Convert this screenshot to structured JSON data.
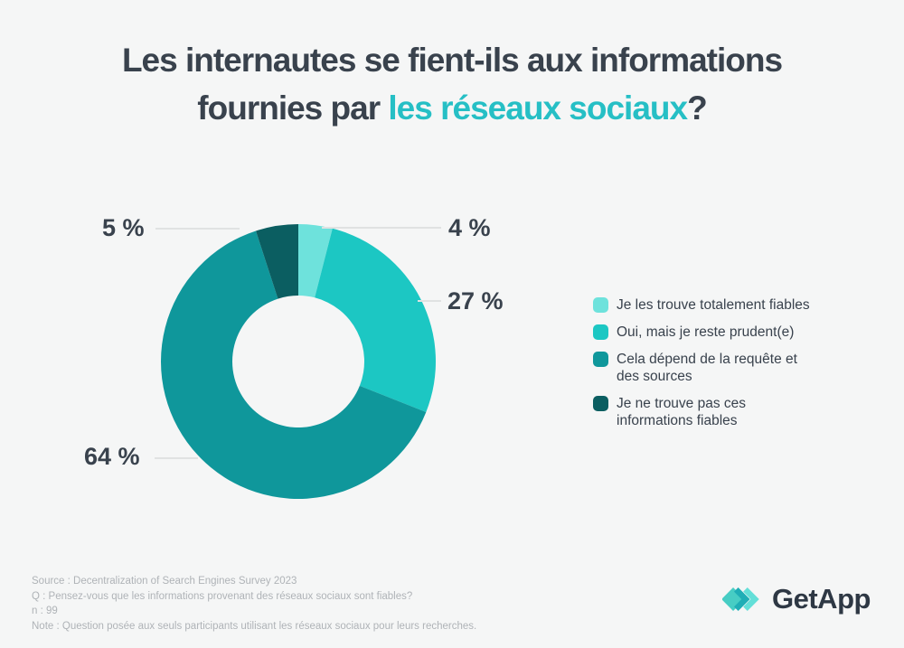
{
  "title": {
    "line1": "Les internautes se fient-ils aux informations",
    "line2_prefix": "fournies par ",
    "line2_highlight": "les réseaux sociaux",
    "line2_suffix": "?"
  },
  "chart_data": {
    "type": "pie",
    "subtype": "donut",
    "title": "Les internautes se fient-ils aux informations fournies par les réseaux sociaux?",
    "start_angle_deg": 0,
    "direction": "clockwise",
    "legend_position": "right",
    "slices": [
      {
        "label": "Je les trouve totalement fiables",
        "legend_text": "Je les trouve totalement fiables",
        "value_pct": 4,
        "display": "4 %",
        "color": "#6EE2DC"
      },
      {
        "label": "Oui, mais je reste prudent(e)",
        "legend_text": "Oui, mais je reste prudent(e)",
        "value_pct": 27,
        "display": "27 %",
        "color": "#1CC7C3"
      },
      {
        "label": "Cela dépend de la requête et des sources",
        "legend_text": "Cela dépend de la requête et\ndes sources",
        "value_pct": 64,
        "display": "64 %",
        "color": "#0F979B"
      },
      {
        "label": "Je ne trouve pas ces informations fiables",
        "legend_text": "Je ne trouve pas ces\ninformations fiables",
        "value_pct": 5,
        "display": "5 %",
        "color": "#0B5E61"
      }
    ]
  },
  "footer": {
    "lines": [
      "Source : Decentralization of Search Engines Survey 2023",
      "Q : Pensez-vous que les informations provenant des réseaux sociaux sont fiables?",
      "n : 99",
      "Note : Question posée aux seuls participants utilisant les réseaux sociaux pour leurs recherches."
    ]
  },
  "logo": {
    "text": "GetApp"
  },
  "colors": {
    "background": "#F5F6F6",
    "title_text": "#39424D",
    "title_accent": "#26BFC5",
    "percent_labels": "#39424D",
    "leader_line": "#E0E2E2",
    "footnote_text": "#AFB3B7",
    "logo_text": "#2E3844"
  }
}
